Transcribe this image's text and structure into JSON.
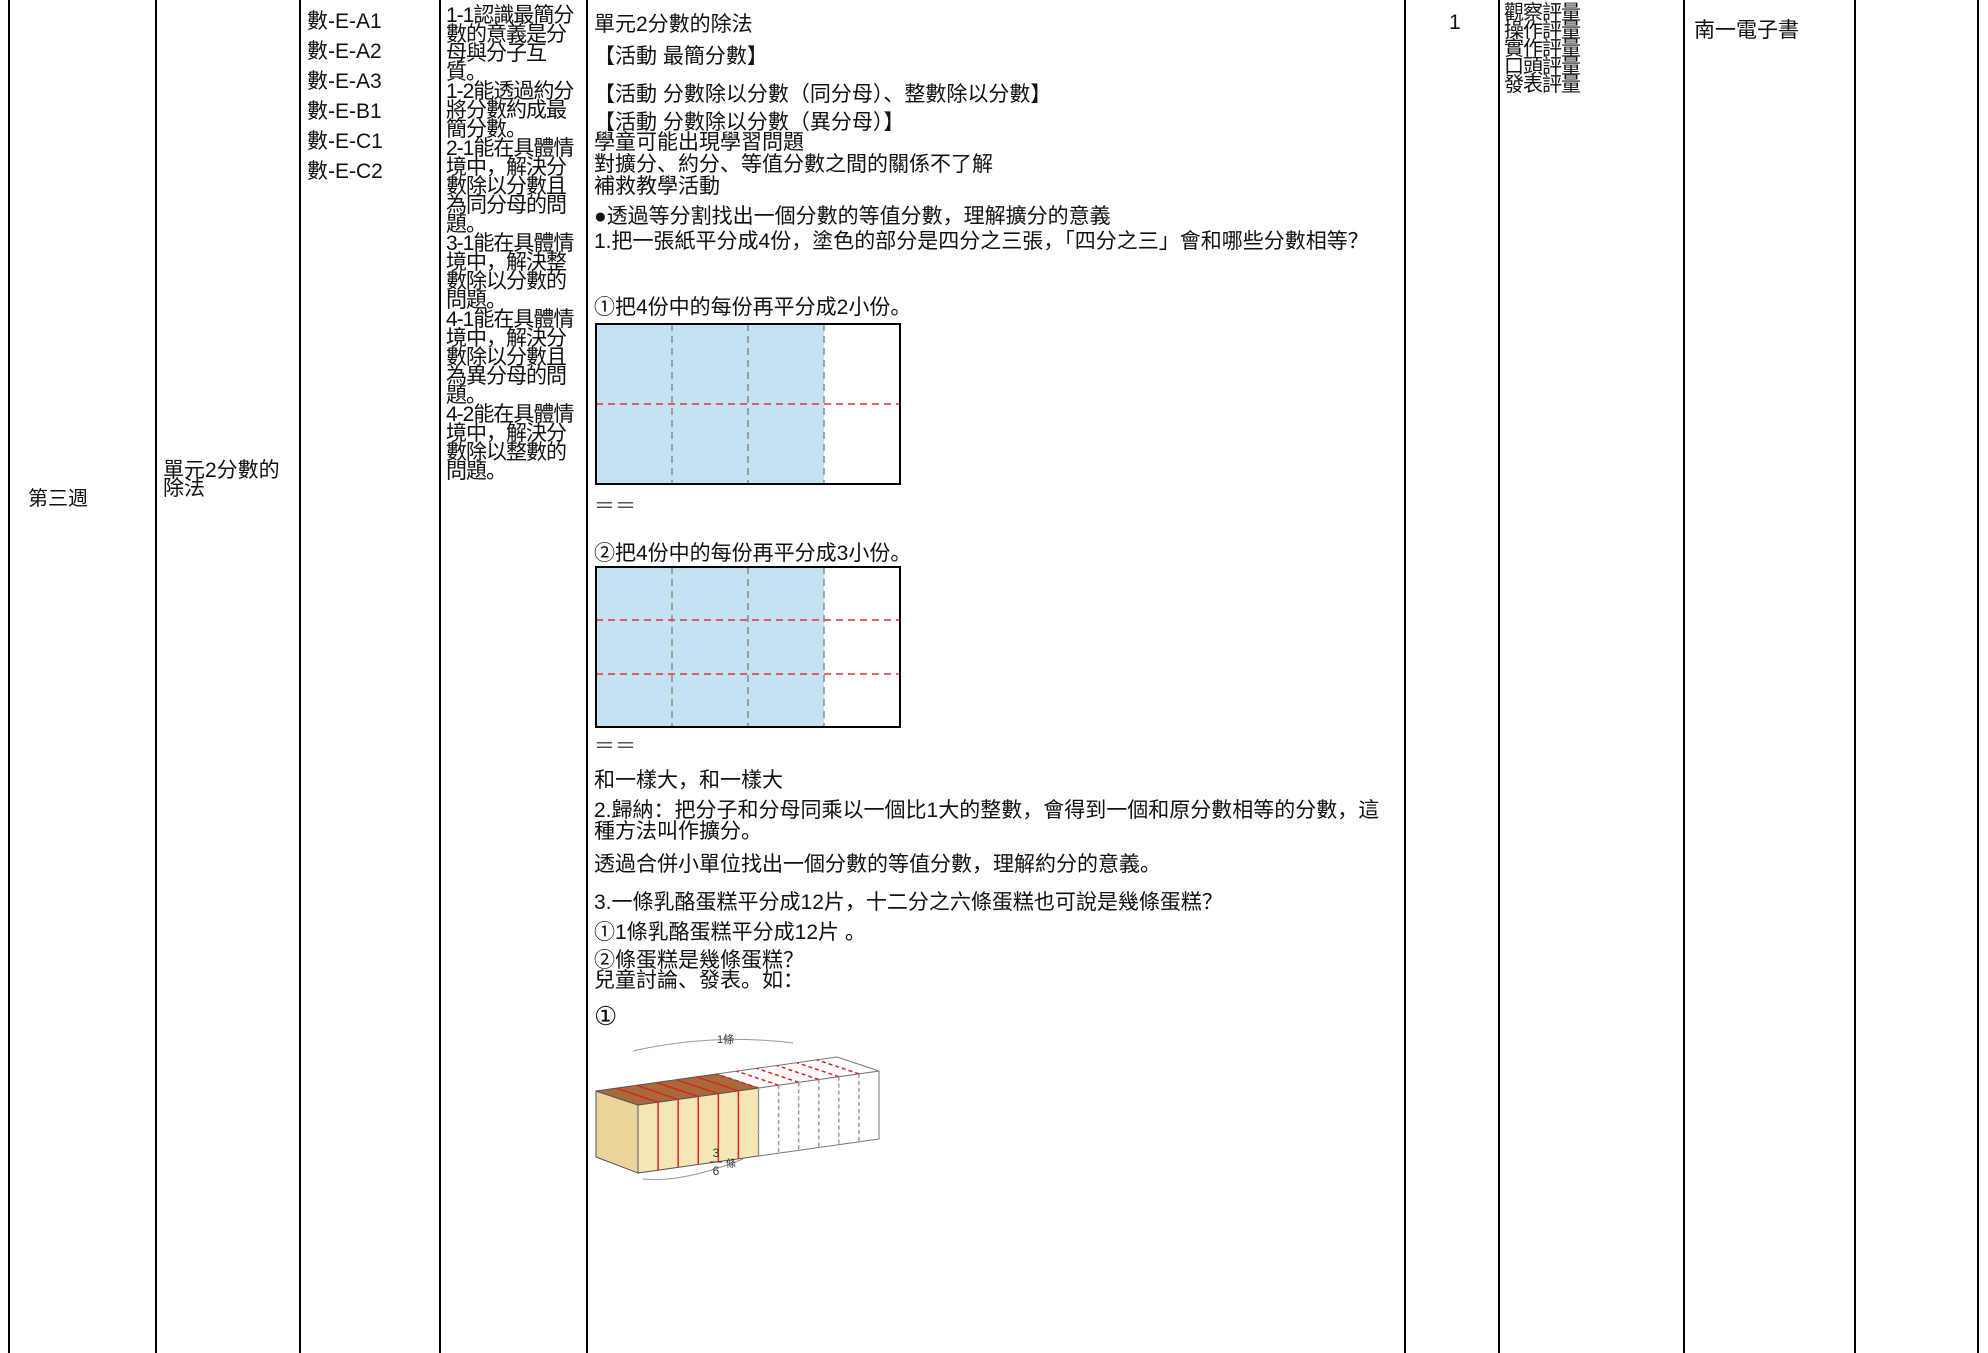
{
  "table": {
    "week": "第三週",
    "unit": "單元2分數的除法",
    "indicators": [
      "數-E-A1",
      "數-E-A2",
      "數-E-A3",
      "數-E-B1",
      "數-E-C1",
      "數-E-C2"
    ],
    "objectives": [
      "1-1認識最簡分數的意義是分母與分子互質。",
      "1-2能透過約分將分數約成最簡分數。",
      "2-1能在具體情境中，解決分數除以分數且為同分母的問題。",
      "3-1能在具體情境中，解決整數除以分數的問題。",
      "4-1能在具體情境中，解決分數除以分數且為異分母的問題。",
      "4-2能在具體情境中，解決分數除以整數的問題。"
    ],
    "activities": {
      "lines": [
        "單元2分數的除法",
        "【活動 最簡分數】",
        "【活動 分數除以分數（同分母）、整數除以分數】",
        "【活動 分數除以分數（異分母）】",
        "學童可能出現學習問題",
        "對擴分、約分、等值分數之間的關係不了解",
        "補救教學活動",
        "●透過等分割找出一個分數的等值分數，理解擴分的意義",
        "1.把一張紙平分成4份，塗色的部分是四分之三張，「四分之三」會和哪些分數相等？",
        "①把4份中的每份再平分成2小份。",
        "＝＝",
        "②把4份中的每份再平分成3小份。",
        "＝＝",
        "和一樣大，和一樣大",
        "2.歸納：把分子和分母同乘以一個比1大的整數，會得到一個和原分數相等的分數，這種方法叫作擴分。",
        "透過合併小單位找出一個分數的等值分數，理解約分的意義。",
        "3.一條乳酪蛋糕平分成12片，十二分之六條蛋糕也可說是幾條蛋糕？",
        "①1條乳酪蛋糕平分成12片 。",
        "②條蛋糕是幾條蛋糕？",
        "兒童討論、發表。如：",
        "①"
      ],
      "cake_labels": {
        "whole": "1條",
        "numerator": "3",
        "denominator": "6",
        "unit": "條"
      }
    },
    "hours": "1",
    "assessment": [
      "觀察評量",
      "操作評量",
      "實作評量",
      "口頭評量",
      "發表評量"
    ],
    "resources": "南一電子書"
  }
}
